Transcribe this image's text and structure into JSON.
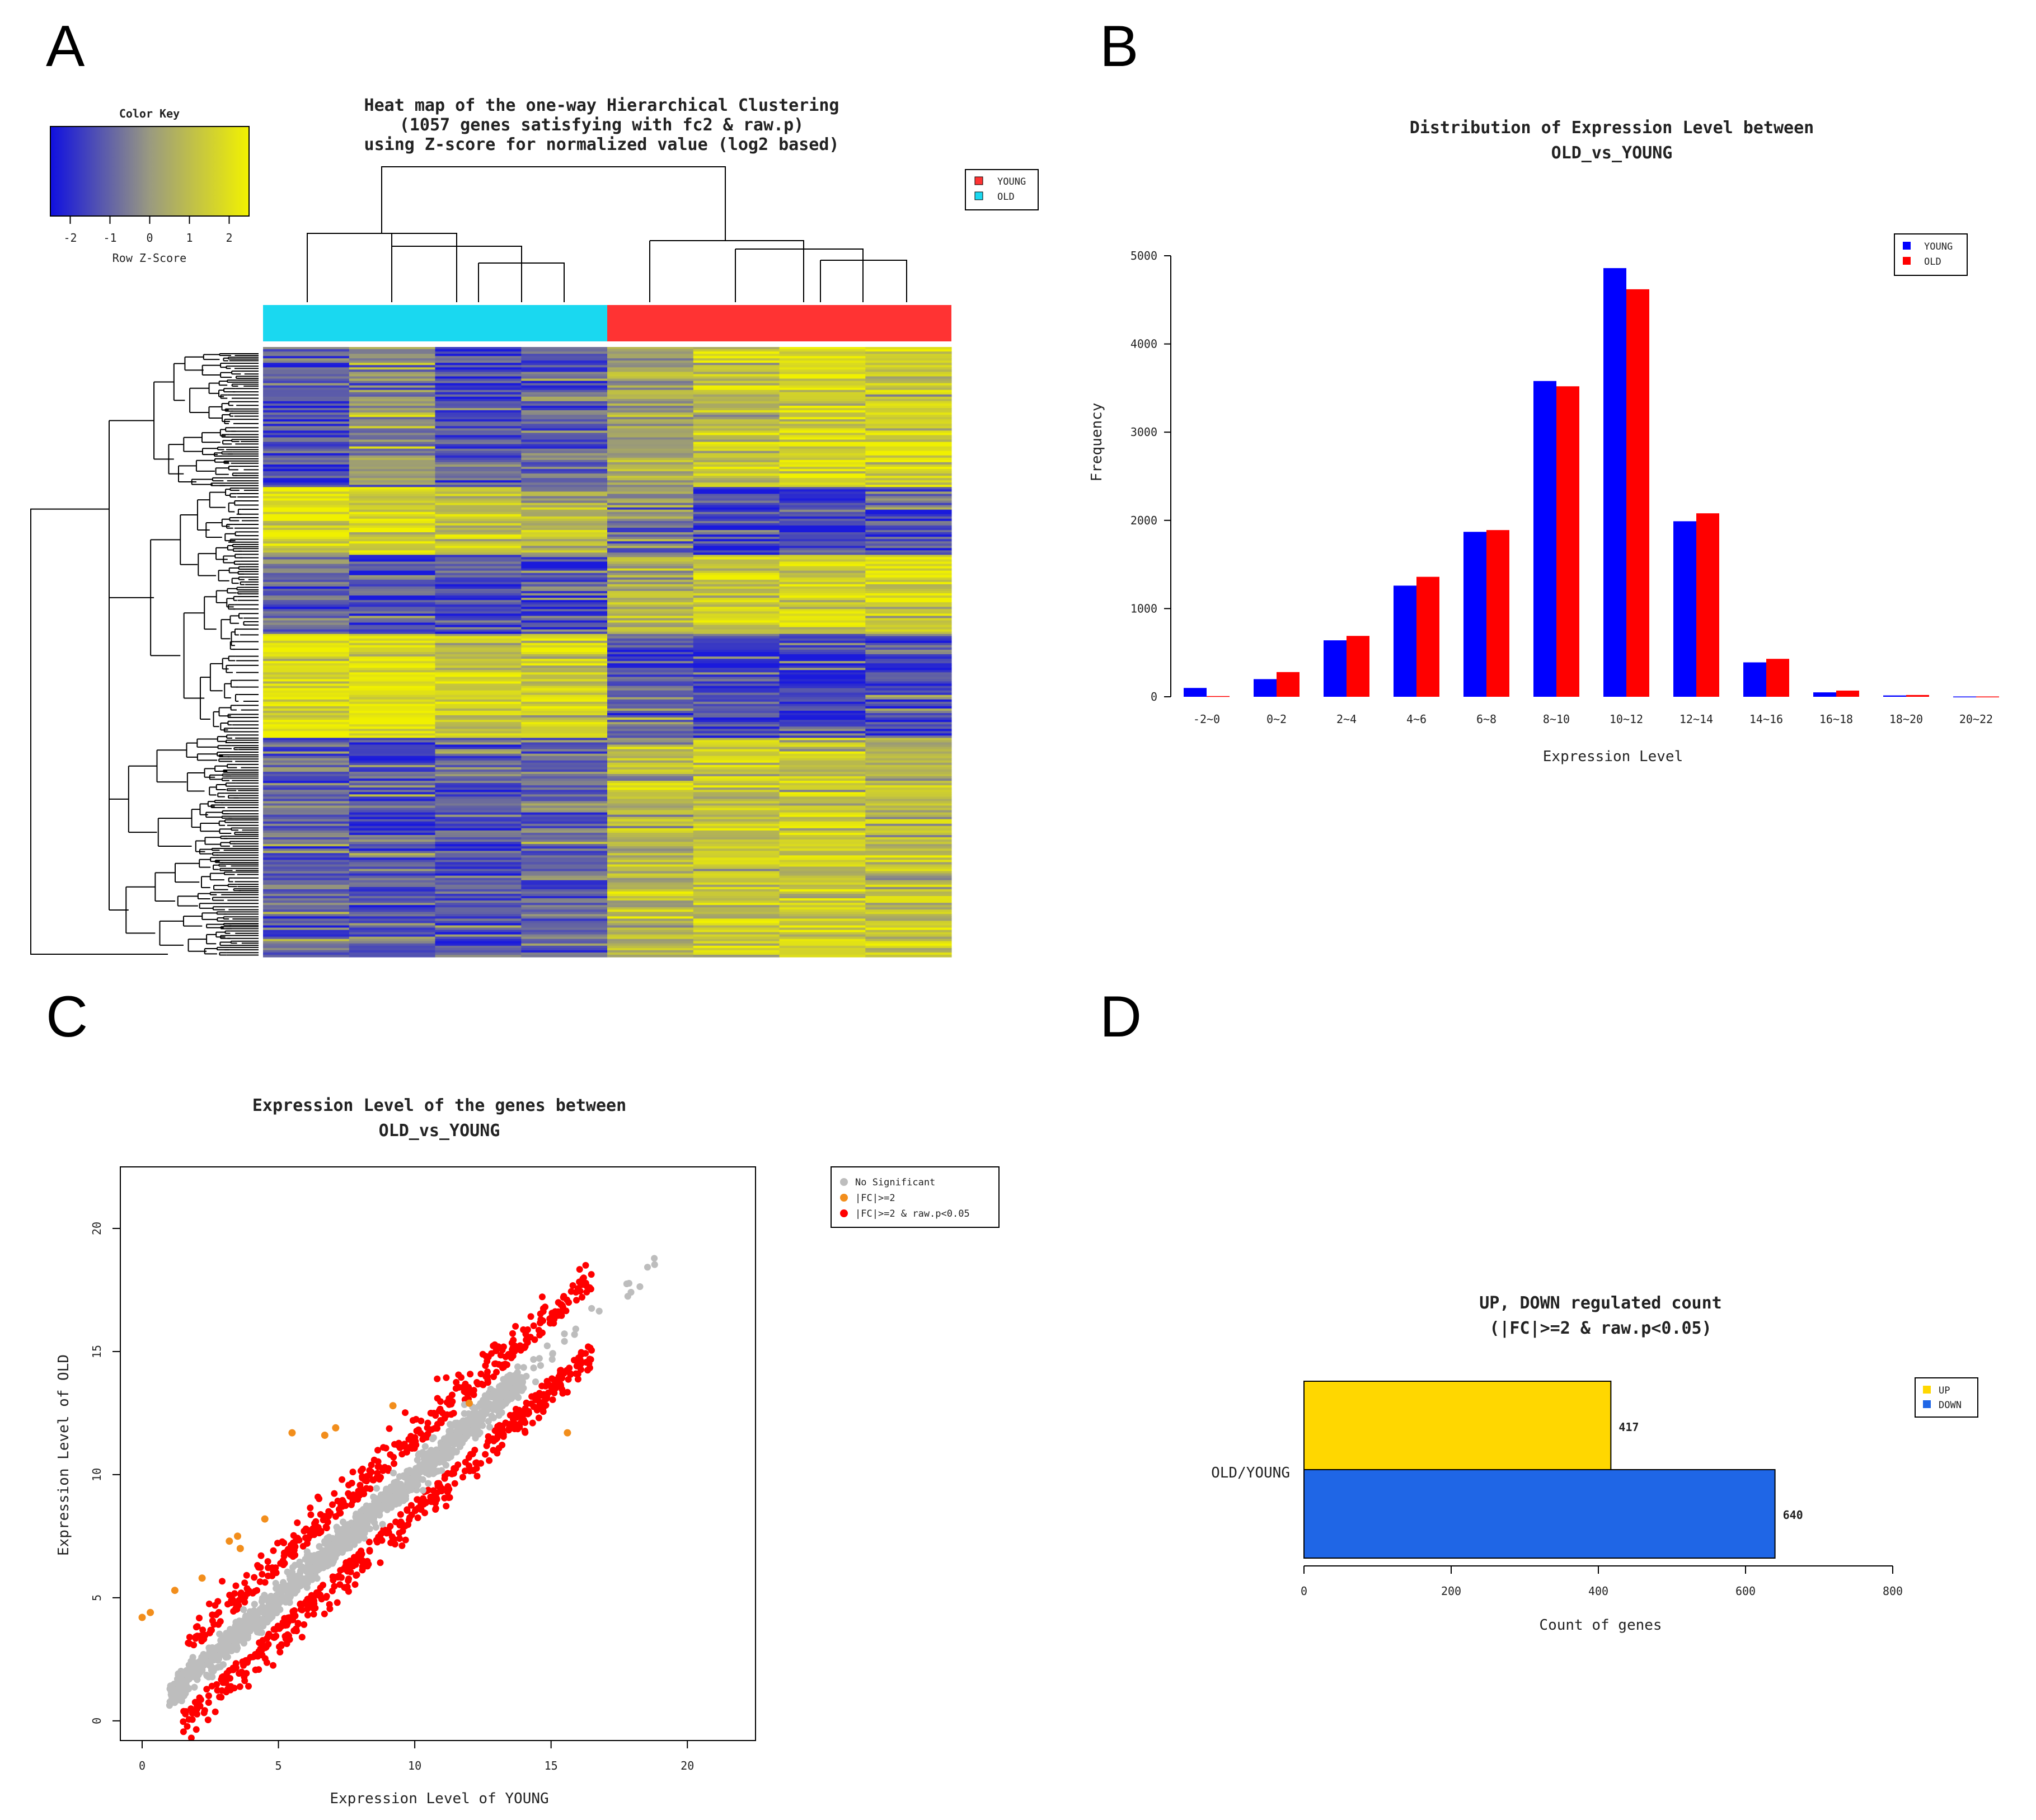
{
  "panel_labels": [
    "A",
    "B",
    "C",
    "D"
  ],
  "colors": {
    "young": "#ff3333",
    "old": "#1ad8f0",
    "bar_young": "#0000ff",
    "bar_old": "#ff0000",
    "ns": "#bdbdbd",
    "fc": "#f28e1c",
    "sig": "#ff0000",
    "up": "#ffd700",
    "down": "#1f66e6",
    "z_low": "#1a1adc",
    "z_mid": "#9a9a78",
    "z_high": "#f0f000"
  },
  "chart_data": [
    {
      "type": "heatmap",
      "title": [
        "Heat map of the one-way Hierarchical Clustering",
        "(1057 genes satisfying with fc2 & raw.p)",
        "using Z-score for normalized value (log2 based)"
      ],
      "color_key": {
        "title": "Color Key",
        "xlabel": "Row Z-Score",
        "ticks": [
          "-2",
          "-1",
          "0",
          "1",
          "2"
        ],
        "range": [
          -2.5,
          2.5
        ]
      },
      "legend": [
        "YOUNG",
        "OLD"
      ],
      "columns": [
        "OLD",
        "OLD",
        "OLD",
        "OLD",
        "YOUNG",
        "YOUNG",
        "YOUNG",
        "YOUNG"
      ],
      "n_genes": 1057,
      "row_blocks": [
        {
          "share": 0.23,
          "pattern": [
            -0.9,
            -0.1,
            -1.0,
            -0.8,
            0.3,
            0.8,
            1.0,
            1.0
          ]
        },
        {
          "share": 0.11,
          "pattern": [
            1.2,
            1.2,
            0.7,
            0.5,
            -0.3,
            -0.9,
            -1.0,
            -0.8
          ]
        },
        {
          "share": 0.13,
          "pattern": [
            -0.7,
            -0.8,
            -1.0,
            -1.0,
            0.4,
            1.0,
            1.0,
            1.1
          ]
        },
        {
          "share": 0.17,
          "pattern": [
            1.3,
            1.2,
            0.8,
            0.9,
            -0.8,
            -1.0,
            -0.9,
            -1.0
          ]
        },
        {
          "share": 0.36,
          "pattern": [
            -0.6,
            -0.9,
            -0.8,
            -0.6,
            0.6,
            0.8,
            0.9,
            0.7
          ]
        }
      ]
    },
    {
      "type": "bar",
      "title": [
        "Distribution of Expression Level between",
        "OLD_vs_YOUNG"
      ],
      "xlabel": "Expression Level",
      "ylabel": "Frequency",
      "categories": [
        "-2~0",
        "0~2",
        "2~4",
        "4~6",
        "6~8",
        "8~10",
        "10~12",
        "12~14",
        "14~16",
        "16~18",
        "18~20",
        "20~22"
      ],
      "series": [
        {
          "name": "YOUNG",
          "values": [
            100,
            200,
            640,
            1260,
            1870,
            3580,
            4860,
            1990,
            390,
            50,
            15,
            3
          ]
        },
        {
          "name": "OLD",
          "values": [
            8,
            280,
            690,
            1360,
            1890,
            3520,
            4620,
            2080,
            430,
            70,
            20,
            3
          ]
        }
      ],
      "ylim": [
        0,
        5000
      ],
      "yticks": [
        "0",
        "1000",
        "2000",
        "3000",
        "4000",
        "5000"
      ]
    },
    {
      "type": "scatter",
      "title": [
        "Expression Level of the genes between",
        "OLD_vs_YOUNG"
      ],
      "xlabel": "Expression Level of YOUNG",
      "ylabel": "Expression Level of OLD",
      "xlim": [
        -0.8,
        22.5
      ],
      "ylim": [
        -0.8,
        22.5
      ],
      "xticks": [
        "0",
        "5",
        "10",
        "15",
        "20"
      ],
      "yticks": [
        "0",
        "5",
        "10",
        "15",
        "20"
      ],
      "legend": [
        "No Significant",
        "|FC|>=2",
        "|FC|>=2 & raw.p<0.05"
      ],
      "fc_points": [
        [
          0,
          4.2
        ],
        [
          0.3,
          4.4
        ],
        [
          1.2,
          5.3
        ],
        [
          3.2,
          7.3
        ],
        [
          3.6,
          7.0
        ],
        [
          4.5,
          8.2
        ],
        [
          5.5,
          11.7
        ],
        [
          6.7,
          11.6
        ],
        [
          7.1,
          11.9
        ],
        [
          9.2,
          12.8
        ],
        [
          12.0,
          12.9
        ],
        [
          15.6,
          11.7
        ],
        [
          3.5,
          7.5
        ],
        [
          2.2,
          5.8
        ]
      ],
      "sig_count": 1057
    },
    {
      "type": "bar",
      "orientation": "horizontal",
      "title": [
        "UP, DOWN regulated count",
        "(|FC|>=2 & raw.p<0.05)"
      ],
      "category": "OLD/YOUNG",
      "xlabel": "Count of genes",
      "xlim": [
        0,
        800
      ],
      "xticks": [
        "0",
        "200",
        "400",
        "600",
        "800"
      ],
      "series": [
        {
          "name": "UP",
          "value": 417,
          "label": "417"
        },
        {
          "name": "DOWN",
          "value": 640,
          "label": "640"
        }
      ]
    }
  ]
}
